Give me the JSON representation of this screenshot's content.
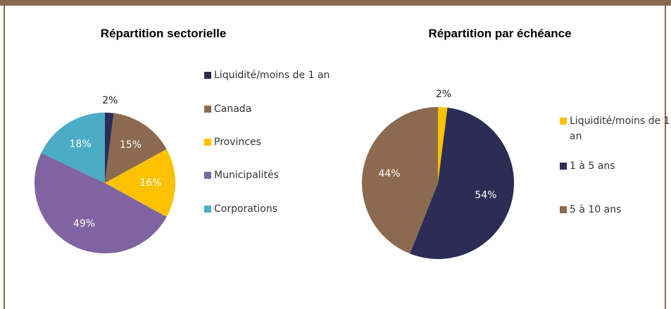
{
  "chart_data": [
    {
      "type": "pie",
      "title": "Répartition sectorielle",
      "categories": [
        "Liquidité/moins de 1 an",
        "Canada",
        "Provinces",
        "Municipalités",
        "Corporations"
      ],
      "values": [
        2,
        15,
        16,
        49,
        18
      ],
      "value_labels": [
        "2%",
        "15%",
        "16%",
        "49%",
        "18%"
      ],
      "colors": [
        "#2b2d54",
        "#8b6a4f",
        "#fcc200",
        "#8064a2",
        "#4bacc6"
      ]
    },
    {
      "type": "pie",
      "title": "Répartition par échéance",
      "categories": [
        "Liquidité/moins de 1 an",
        "1 à 5 ans",
        "5 à 10 ans"
      ],
      "values": [
        2,
        54,
        44
      ],
      "value_labels": [
        "2%",
        "54%",
        "44%"
      ],
      "colors": [
        "#fcc200",
        "#2b2d54",
        "#8b6a4f"
      ]
    }
  ]
}
